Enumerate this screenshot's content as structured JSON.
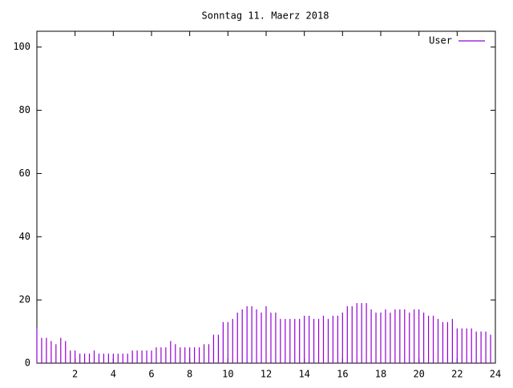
{
  "chart_data": {
    "type": "impulse",
    "title": "Sonntag 11. Maerz 2018",
    "xlim": [
      0,
      24
    ],
    "xticks": [
      2,
      4,
      6,
      8,
      10,
      12,
      14,
      16,
      18,
      20,
      22,
      24
    ],
    "ylim": [
      0,
      105
    ],
    "yticks": [
      0,
      20,
      40,
      60,
      80,
      100
    ],
    "legend": "top-right",
    "series": [
      {
        "name": "User",
        "color": "#9400d3",
        "x": [
          0,
          0.25,
          0.5,
          0.75,
          1,
          1.25,
          1.5,
          1.75,
          2,
          2.25,
          2.5,
          2.75,
          3,
          3.25,
          3.5,
          3.75,
          4,
          4.25,
          4.5,
          4.75,
          5,
          5.25,
          5.5,
          5.75,
          6,
          6.25,
          6.5,
          6.75,
          7,
          7.25,
          7.5,
          7.75,
          8,
          8.25,
          8.5,
          8.75,
          9,
          9.25,
          9.5,
          9.75,
          10,
          10.25,
          10.5,
          10.75,
          11,
          11.25,
          11.5,
          11.75,
          12,
          12.25,
          12.5,
          12.75,
          13,
          13.25,
          13.5,
          13.75,
          14,
          14.25,
          14.5,
          14.75,
          15,
          15.25,
          15.5,
          15.75,
          16,
          16.25,
          16.5,
          16.75,
          17,
          17.25,
          17.5,
          17.75,
          18,
          18.25,
          18.5,
          18.75,
          19,
          19.25,
          19.5,
          19.75,
          20,
          20.25,
          20.5,
          20.75,
          21,
          21.25,
          21.5,
          21.75,
          22,
          22.25,
          22.5,
          22.75,
          23,
          23.25,
          23.5,
          23.75
        ],
        "values": [
          11,
          8,
          8,
          7,
          6,
          8,
          7,
          4,
          4,
          3,
          3,
          3,
          4,
          3,
          3,
          3,
          3,
          3,
          3,
          3,
          4,
          4,
          4,
          4,
          4,
          5,
          5,
          5,
          7,
          6,
          5,
          5,
          5,
          5,
          5,
          6,
          6,
          9,
          9,
          13,
          13,
          14,
          16,
          17,
          18,
          18,
          17,
          16,
          18,
          16,
          16,
          14,
          14,
          14,
          14,
          14,
          15,
          15,
          14,
          14,
          15,
          14,
          15,
          15,
          16,
          18,
          18,
          19,
          19,
          19,
          17,
          16,
          16,
          17,
          16,
          17,
          17,
          17,
          16,
          17,
          17,
          16,
          15,
          15,
          14,
          13,
          13,
          14,
          11,
          11,
          11,
          11,
          10,
          10,
          10,
          9
        ]
      }
    ]
  }
}
